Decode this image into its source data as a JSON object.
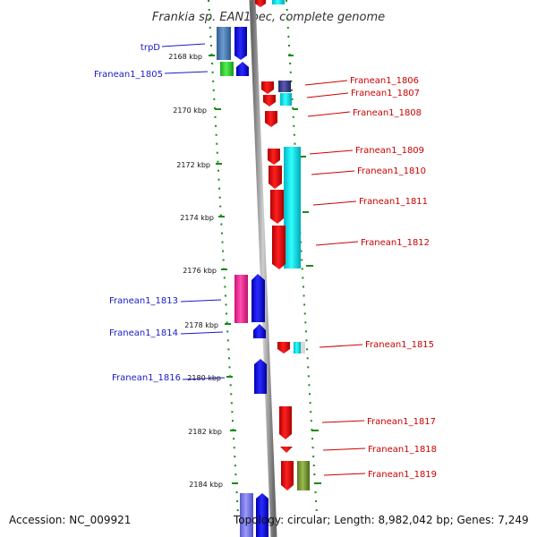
{
  "title": "Frankia sp. EAN1pec, complete genome",
  "footer": {
    "accession": "Accession: NC_009921",
    "topology": "Topology: circular; Length: 8,982,042 bp; Genes: 7,249"
  },
  "kbp_ticks": [
    "2168 kbp",
    "2170 kbp",
    "2172 kbp",
    "2174 kbp",
    "2176 kbp",
    "2178 kbp",
    "2180 kbp",
    "2182 kbp",
    "2184 kbp"
  ],
  "genes_left": [
    {
      "label": "trpD",
      "color": "#4a7fb5",
      "highlight": "#1a1ae6"
    },
    {
      "label": "Franean1_1805",
      "color": "#33cc33",
      "highlight": "#1a1ae6"
    },
    {
      "label": "Franean1_1813",
      "color": "#ff3399",
      "highlight": "#1a1ae6"
    },
    {
      "label": "Franean1_1814",
      "color": "#1a1ae6"
    },
    {
      "label": "Franean1_1816",
      "color": "#1a1ae6"
    }
  ],
  "genes_right": [
    {
      "label": "Franean1_1806",
      "color": "#ee1111",
      "highlight": "#3a3a9a"
    },
    {
      "label": "Franean1_1807",
      "color": "#ee1111",
      "highlight": "#00e0e0"
    },
    {
      "label": "Franean1_1808",
      "color": "#ee1111"
    },
    {
      "label": "Franean1_1809",
      "color": "#ee1111",
      "highlight": "#00e0e0"
    },
    {
      "label": "Franean1_1810",
      "color": "#ee1111"
    },
    {
      "label": "Franean1_1811",
      "color": "#ee1111"
    },
    {
      "label": "Franean1_1812",
      "color": "#ee1111"
    },
    {
      "label": "Franean1_1815",
      "color": "#ee1111",
      "highlight": "#00e0e0"
    },
    {
      "label": "Franean1_1817",
      "color": "#ee1111"
    },
    {
      "label": "Franean1_1818",
      "color": "#ee1111"
    },
    {
      "label": "Franean1_1819",
      "color": "#ee1111",
      "highlight": "#7a9a30"
    }
  ]
}
